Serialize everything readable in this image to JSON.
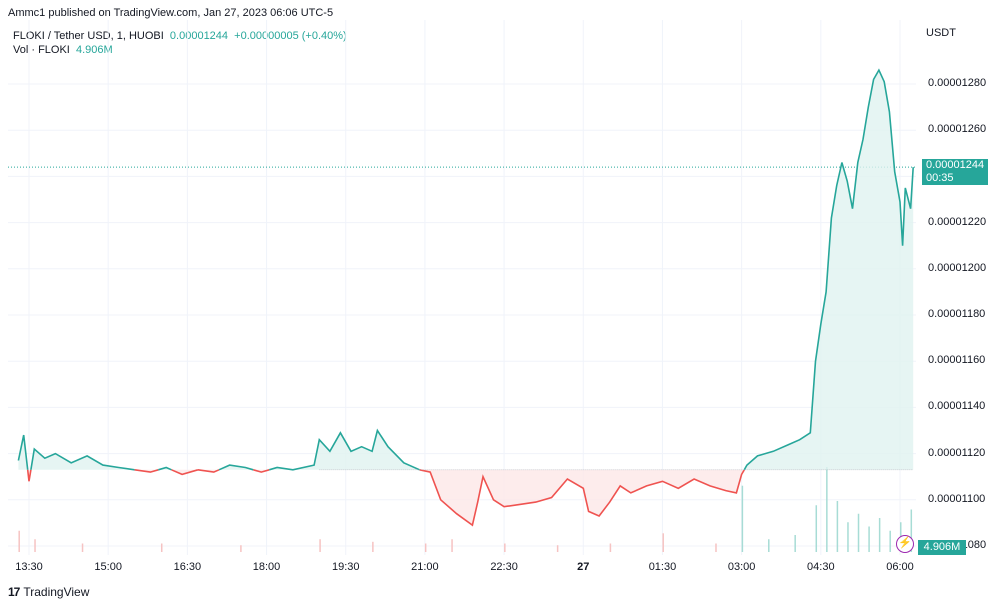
{
  "header": {
    "published": "Ammc1 published on TradingView.com, Jan 27, 2023 06:06 UTC-5"
  },
  "legend": {
    "symbol": "FLOKI / Tether USD, 1, HUOBI",
    "price": "0.00001244",
    "change": "+0.00000005 (+0.40%)",
    "vol_label": "Vol · FLOKI",
    "vol_value": "4.906M"
  },
  "price_tag": {
    "price": "0.00001244",
    "countdown": "00:35"
  },
  "vol_tag": "4.906M",
  "bolt_icon": "⚡",
  "footer": {
    "brand": "TradingView",
    "logo_text": "17"
  },
  "colors": {
    "up": "#26a69a",
    "down": "#ef5350",
    "fill_up": "#e0f3f0",
    "fill_down": "#fde7e7"
  },
  "chart_data": {
    "type": "area",
    "unit": "USDT",
    "y_ticks": [
      "0.00001280",
      "0.00001260",
      "0.00001240",
      "0.00001220",
      "0.00001200",
      "0.00001180",
      "0.00001160",
      "0.00001140",
      "0.00001120",
      "0.00001100",
      "0.00001080"
    ],
    "y_tick_values": [
      1280,
      1260,
      1240,
      1220,
      1200,
      1180,
      1160,
      1140,
      1120,
      1100,
      1080
    ],
    "x_ticks": [
      {
        "label": "13:30",
        "h": 13.5
      },
      {
        "label": "15:00",
        "h": 15.0
      },
      {
        "label": "16:30",
        "h": 16.5
      },
      {
        "label": "18:00",
        "h": 18.0
      },
      {
        "label": "19:30",
        "h": 19.5
      },
      {
        "label": "21:00",
        "h": 21.0
      },
      {
        "label": "22:30",
        "h": 22.5
      },
      {
        "label": "27",
        "h": 24.0,
        "bold": true
      },
      {
        "label": "01:30",
        "h": 25.5
      },
      {
        "label": "03:00",
        "h": 27.0
      },
      {
        "label": "04:30",
        "h": 28.5
      },
      {
        "label": "06:00",
        "h": 30.0
      }
    ],
    "baseline": 1113,
    "last_price": 1244,
    "points": [
      [
        13.3,
        1117
      ],
      [
        13.4,
        1128
      ],
      [
        13.5,
        1108
      ],
      [
        13.6,
        1122
      ],
      [
        13.8,
        1118
      ],
      [
        14.0,
        1120
      ],
      [
        14.3,
        1116
      ],
      [
        14.6,
        1119
      ],
      [
        14.9,
        1115
      ],
      [
        15.2,
        1114
      ],
      [
        15.5,
        1113
      ],
      [
        15.8,
        1112
      ],
      [
        16.1,
        1114
      ],
      [
        16.4,
        1111
      ],
      [
        16.7,
        1113
      ],
      [
        17.0,
        1112
      ],
      [
        17.3,
        1115
      ],
      [
        17.6,
        1114
      ],
      [
        17.9,
        1112
      ],
      [
        18.2,
        1114
      ],
      [
        18.5,
        1113
      ],
      [
        18.9,
        1115
      ],
      [
        19.0,
        1126
      ],
      [
        19.2,
        1121
      ],
      [
        19.4,
        1129
      ],
      [
        19.6,
        1121
      ],
      [
        19.8,
        1123
      ],
      [
        20.0,
        1121
      ],
      [
        20.1,
        1130
      ],
      [
        20.3,
        1123
      ],
      [
        20.6,
        1116
      ],
      [
        20.9,
        1113
      ],
      [
        21.1,
        1112
      ],
      [
        21.3,
        1100
      ],
      [
        21.6,
        1094
      ],
      [
        21.9,
        1089
      ],
      [
        22.0,
        1099
      ],
      [
        22.1,
        1110
      ],
      [
        22.3,
        1100
      ],
      [
        22.5,
        1097
      ],
      [
        22.8,
        1098
      ],
      [
        23.1,
        1099
      ],
      [
        23.4,
        1101
      ],
      [
        23.7,
        1109
      ],
      [
        24.0,
        1105
      ],
      [
        24.1,
        1095
      ],
      [
        24.3,
        1093
      ],
      [
        24.5,
        1099
      ],
      [
        24.7,
        1106
      ],
      [
        24.9,
        1103
      ],
      [
        25.2,
        1106
      ],
      [
        25.5,
        1108
      ],
      [
        25.8,
        1105
      ],
      [
        26.1,
        1109
      ],
      [
        26.4,
        1106
      ],
      [
        26.7,
        1104
      ],
      [
        26.9,
        1103
      ],
      [
        27.0,
        1111
      ],
      [
        27.1,
        1115
      ],
      [
        27.3,
        1119
      ],
      [
        27.6,
        1121
      ],
      [
        27.9,
        1124
      ],
      [
        28.1,
        1126
      ],
      [
        28.3,
        1129
      ],
      [
        28.4,
        1160
      ],
      [
        28.5,
        1176
      ],
      [
        28.6,
        1190
      ],
      [
        28.7,
        1222
      ],
      [
        28.8,
        1236
      ],
      [
        28.9,
        1246
      ],
      [
        29.0,
        1238
      ],
      [
        29.1,
        1226
      ],
      [
        29.2,
        1246
      ],
      [
        29.3,
        1256
      ],
      [
        29.4,
        1270
      ],
      [
        29.5,
        1282
      ],
      [
        29.6,
        1286
      ],
      [
        29.7,
        1281
      ],
      [
        29.8,
        1268
      ],
      [
        29.9,
        1242
      ],
      [
        30.0,
        1229
      ],
      [
        30.05,
        1210
      ],
      [
        30.1,
        1235
      ],
      [
        30.2,
        1226
      ],
      [
        30.25,
        1244
      ]
    ],
    "volumes": [
      [
        13.3,
        0.25
      ],
      [
        13.6,
        0.15
      ],
      [
        14.5,
        0.1
      ],
      [
        16.0,
        0.1
      ],
      [
        17.5,
        0.08
      ],
      [
        19.0,
        0.15
      ],
      [
        20.0,
        0.12
      ],
      [
        21.0,
        0.1
      ],
      [
        21.5,
        0.15
      ],
      [
        22.5,
        0.1
      ],
      [
        23.5,
        0.08
      ],
      [
        24.5,
        0.1
      ],
      [
        25.5,
        0.22
      ],
      [
        26.5,
        0.1
      ],
      [
        27.0,
        0.78
      ],
      [
        27.5,
        0.15
      ],
      [
        28.0,
        0.2
      ],
      [
        28.4,
        0.55
      ],
      [
        28.6,
        1.0
      ],
      [
        28.8,
        0.6
      ],
      [
        29.0,
        0.35
      ],
      [
        29.2,
        0.45
      ],
      [
        29.4,
        0.3
      ],
      [
        29.6,
        0.4
      ],
      [
        29.8,
        0.25
      ],
      [
        30.0,
        0.35
      ],
      [
        30.2,
        0.5
      ]
    ]
  }
}
